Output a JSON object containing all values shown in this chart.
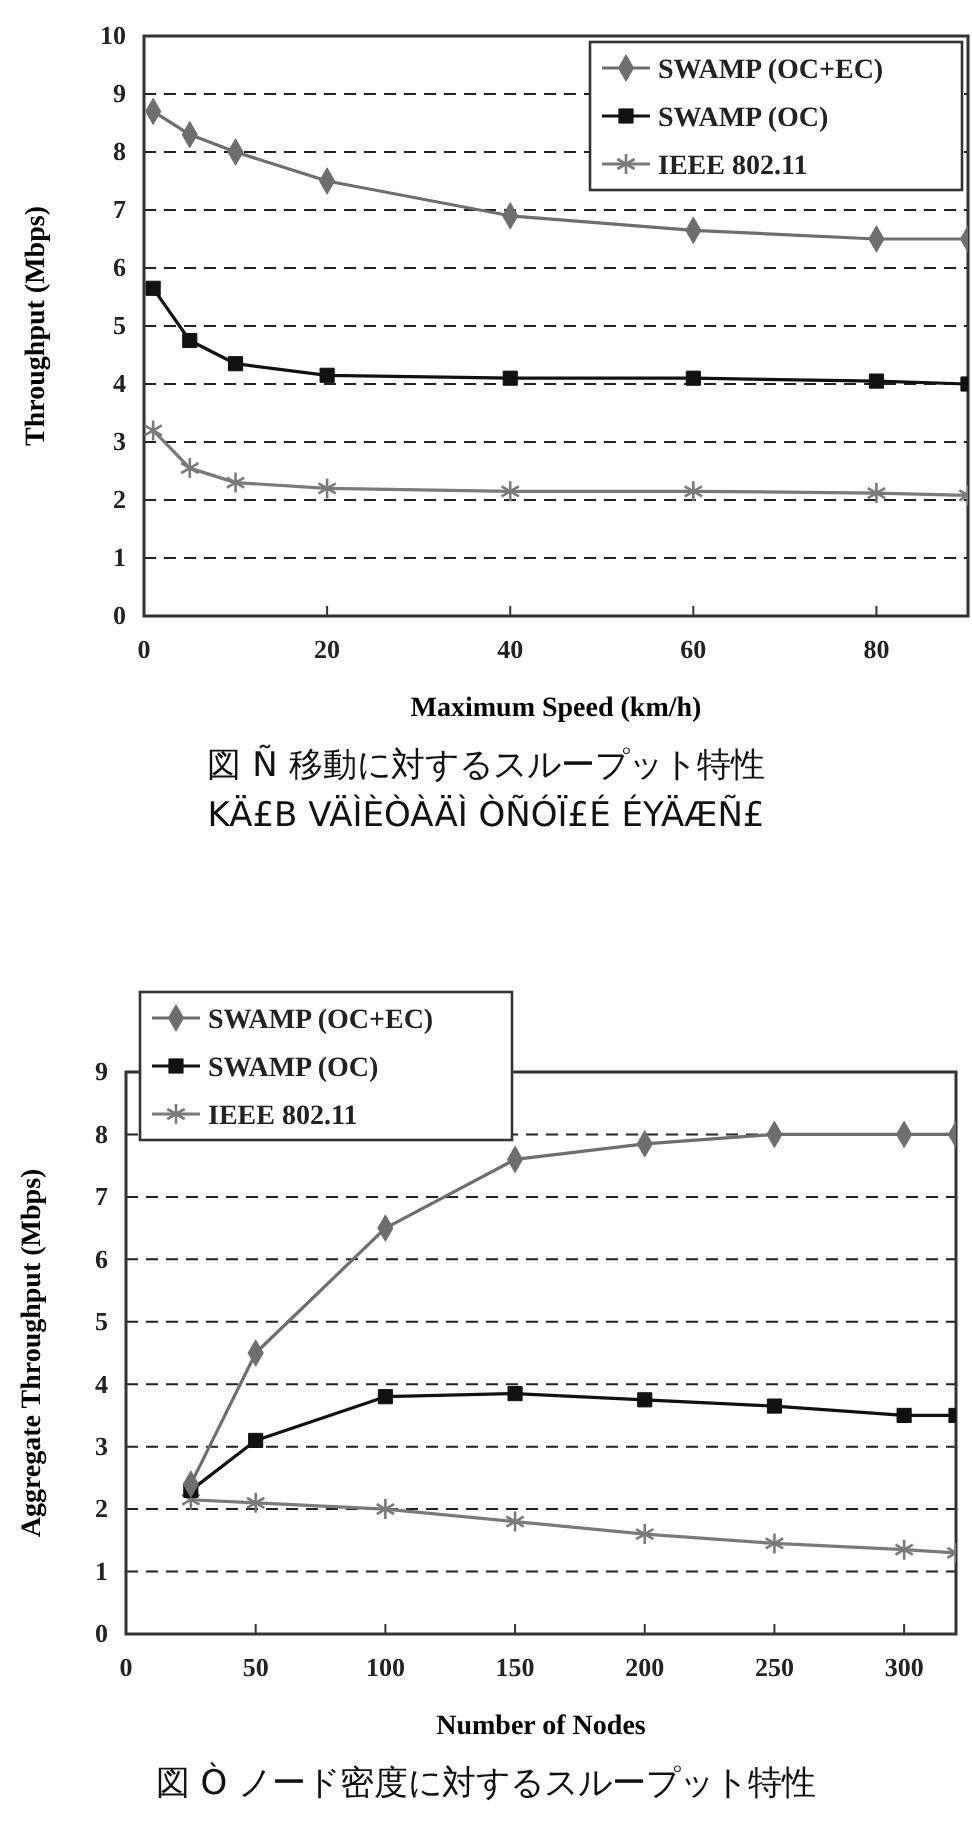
{
  "chart_data": [
    {
      "type": "line",
      "xlabel": "Maximum Speed (km/h)",
      "ylabel": "Throughput (Mbps)",
      "x": [
        1,
        5,
        10,
        20,
        40,
        60,
        80,
        90
      ],
      "series": [
        {
          "name": "SWAMP (OC+EC)",
          "color": "#6e6e6e",
          "marker": "diamond",
          "values": [
            8.7,
            8.3,
            8.0,
            7.5,
            6.9,
            6.65,
            6.5,
            6.5
          ]
        },
        {
          "name": "SWAMP (OC)",
          "color": "#111111",
          "marker": "square",
          "values": [
            5.65,
            4.75,
            4.35,
            4.15,
            4.1,
            4.1,
            4.05,
            4.0
          ]
        },
        {
          "name": "IEEE 802.11",
          "color": "#7a7a7a",
          "marker": "cross",
          "values": [
            3.2,
            2.55,
            2.3,
            2.2,
            2.15,
            2.15,
            2.12,
            2.08
          ]
        }
      ],
      "xlim": [
        0,
        90
      ],
      "xticks": [
        0,
        20,
        40,
        60,
        80
      ],
      "ylim": [
        0,
        10
      ],
      "yticks": [
        0,
        1,
        2,
        3,
        4,
        5,
        6,
        7,
        8,
        9,
        10
      ],
      "grid": "y",
      "legend": "top right",
      "annotations": [
        "図 Ñ 移動に対するスループット特性",
        "KÄ£B VÄÌÈÒÀÄÌ ÒÑÓÏ£É ÉYÄÆÑ£"
      ]
    },
    {
      "type": "line",
      "xlabel": "Number of Nodes",
      "ylabel": "Aggregate Throughput (Mbps)",
      "x": [
        25,
        50,
        100,
        150,
        200,
        250,
        300,
        320
      ],
      "series": [
        {
          "name": "SWAMP (OC+EC)",
          "color": "#6e6e6e",
          "marker": "diamond",
          "values": [
            2.4,
            4.5,
            6.5,
            7.6,
            7.85,
            8.0,
            8.0,
            8.0
          ]
        },
        {
          "name": "SWAMP (OC)",
          "color": "#111111",
          "marker": "square",
          "values": [
            2.3,
            3.1,
            3.8,
            3.85,
            3.75,
            3.65,
            3.5,
            3.5
          ]
        },
        {
          "name": "IEEE 802.11",
          "color": "#7a7a7a",
          "marker": "cross",
          "values": [
            2.15,
            2.1,
            2.0,
            1.8,
            1.6,
            1.45,
            1.35,
            1.3
          ]
        }
      ],
      "xlim": [
        0,
        320
      ],
      "xticks": [
        0,
        50,
        100,
        150,
        200,
        250,
        300
      ],
      "ylim": [
        0,
        9
      ],
      "yticks": [
        0,
        1,
        2,
        3,
        4,
        5,
        6,
        7,
        8,
        9
      ],
      "grid": "y",
      "legend": "top left",
      "annotations": [
        "図 Ò ノード密度に対するスループット特性"
      ]
    }
  ]
}
